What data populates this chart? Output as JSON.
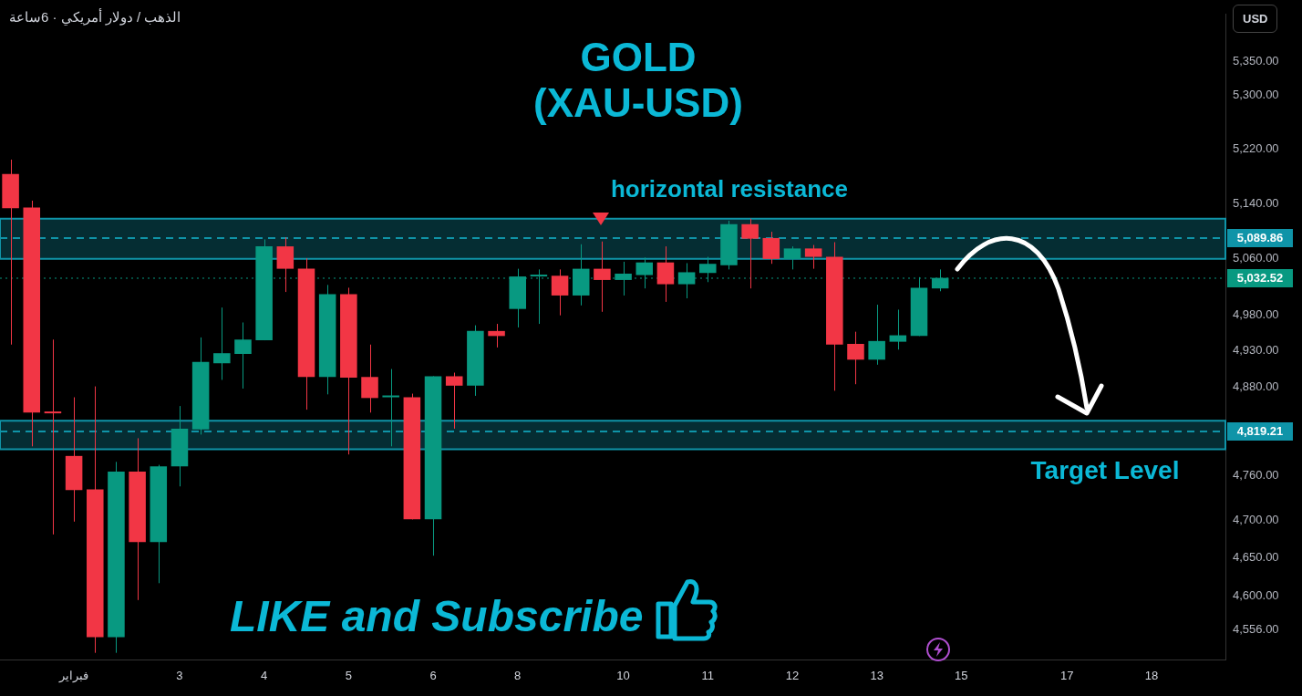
{
  "chart_data": {
    "type": "candlestick",
    "title": "GOLD",
    "subtitle": "(XAU-USD)",
    "annotations": [
      "الذهب / دولار أمريكي · 6ساعة",
      "USD",
      "horizontal resistance",
      "Target Level",
      "LIKE and Subscribe"
    ],
    "categories": [
      null,
      null,
      null,
      "فبراير",
      null,
      null,
      null,
      null,
      "3",
      null,
      null,
      null,
      "4",
      null,
      null,
      null,
      "5",
      null,
      null,
      null,
      "6",
      null,
      null,
      null,
      "8",
      null,
      null,
      null,
      null,
      "10",
      null,
      null,
      null,
      "11",
      null,
      null,
      null,
      "12",
      null,
      null,
      null,
      "13",
      null,
      null,
      null,
      "15",
      null,
      null,
      null,
      null,
      "17",
      null,
      null,
      null,
      "18",
      null,
      null,
      null
    ],
    "ohlc": [
      [
        5183,
        5204,
        4939,
        5133
      ],
      [
        5134,
        5144,
        4799,
        4845
      ],
      [
        4845,
        4946,
        4681,
        4844
      ],
      [
        4786,
        4866,
        4698,
        4740
      ],
      [
        4741,
        4881,
        4527,
        4547
      ],
      [
        4547,
        4778,
        4527,
        4765
      ],
      [
        4765,
        4810,
        4595,
        4671
      ],
      [
        4671,
        4774,
        4617,
        4772
      ],
      [
        4772,
        4854,
        4745,
        4823
      ],
      [
        4822,
        4949,
        4815,
        4915
      ],
      [
        4913,
        4991,
        4890,
        4927
      ],
      [
        4926,
        4970,
        4878,
        4946
      ],
      [
        4945,
        5088,
        4945,
        5078
      ],
      [
        5078,
        5091,
        5013,
        5046
      ],
      [
        5046,
        5061,
        4849,
        4894
      ],
      [
        4894,
        5023,
        4870,
        5010
      ],
      [
        5010,
        5019,
        4788,
        4893
      ],
      [
        4894,
        4939,
        4845,
        4865
      ],
      [
        4866,
        4905,
        4799,
        4867
      ],
      [
        4866,
        4871,
        4701,
        4701
      ],
      [
        4701,
        4895,
        4653,
        4895
      ],
      [
        4895,
        4900,
        4823,
        4882
      ],
      [
        4882,
        4966,
        4868,
        4958
      ],
      [
        4958,
        4968,
        4935,
        4951
      ],
      [
        4989,
        5046,
        4963,
        5035
      ],
      [
        5035,
        5045,
        4968,
        5036
      ],
      [
        5036,
        5045,
        4980,
        5008
      ],
      [
        5008,
        5081,
        4994,
        5046
      ],
      [
        5046,
        5085,
        4985,
        5030
      ],
      [
        5030,
        5056,
        5008,
        5039
      ],
      [
        5037,
        5062,
        5018,
        5055
      ],
      [
        5055,
        5078,
        4999,
        5024
      ],
      [
        5024,
        5054,
        5004,
        5041
      ],
      [
        5040,
        5063,
        5027,
        5053
      ],
      [
        5051,
        5115,
        5045,
        5110
      ],
      [
        5110,
        5118,
        5018,
        5089
      ],
      [
        5090,
        5099,
        5053,
        5060
      ],
      [
        5060,
        5078,
        5045,
        5075
      ],
      [
        5075,
        5080,
        5046,
        5063
      ],
      [
        5063,
        5084,
        4875,
        4939
      ],
      [
        4940,
        4957,
        4884,
        4918
      ],
      [
        4918,
        4995,
        4911,
        4944
      ],
      [
        4943,
        4988,
        4932,
        4952
      ],
      [
        4951,
        5034,
        4951,
        5019
      ],
      [
        5018,
        5045,
        5014,
        5033
      ],
      null,
      null,
      null,
      null,
      null,
      null,
      null,
      null,
      null,
      null,
      null,
      null,
      null
    ],
    "colors": [
      "#f23645",
      "#f23645",
      "#f23645",
      "#f23645",
      "#f23645",
      "#089981",
      "#f23645",
      "#089981",
      "#089981",
      "#089981",
      "#089981",
      "#089981",
      "#089981",
      "#f23645",
      "#f23645",
      "#089981",
      "#f23645",
      "#f23645",
      "#089981",
      "#f23645",
      "#089981",
      "#f23645",
      "#089981",
      "#f23645",
      "#089981",
      "#089981",
      "#f23645",
      "#089981",
      "#f23645",
      "#089981",
      "#089981",
      "#f23645",
      "#089981",
      "#089981",
      "#089981",
      "#f23645",
      "#f23645",
      "#089981",
      "#f23645",
      "#f23645",
      "#f23645",
      "#089981",
      "#089981",
      "#089981",
      "#089981",
      null,
      null,
      null,
      null,
      null,
      null,
      null,
      null,
      null,
      null,
      null,
      null,
      null
    ],
    "log": true,
    "ylim": [
      4518,
      5422
    ],
    "yticks": [
      {
        "value": 4556,
        "label": "4,556.00"
      },
      {
        "value": 4600,
        "label": "4,600.00"
      },
      {
        "value": 4650,
        "label": "4,650.00"
      },
      {
        "value": 4700,
        "label": "4,700.00"
      },
      {
        "value": 4760,
        "label": "4,760.00"
      },
      {
        "value": 4880,
        "label": "4,880.00"
      },
      {
        "value": 4930,
        "label": "4,930.00"
      },
      {
        "value": 4980,
        "label": "4,980.00"
      },
      {
        "value": 5060,
        "label": "5,060.00"
      },
      {
        "value": 5140,
        "label": "5,140.00"
      },
      {
        "value": 5220,
        "label": "5,220.00"
      },
      {
        "value": 5300,
        "label": "5,300.00"
      },
      {
        "value": 5350,
        "label": "5,350.00"
      }
    ],
    "bands": [
      {
        "axis": "y",
        "from": 5060,
        "to": 5118,
        "color": "#0f94a8"
      },
      {
        "axis": "y",
        "from": 4795,
        "to": 4834,
        "color": "#0f94a8"
      }
    ],
    "ref_lines": [
      {
        "axis": "y",
        "value": 5089.86,
        "label": "5,089.86",
        "color": "#0f94a8",
        "line_style": "dashed"
      },
      {
        "axis": "y",
        "value": 4819.21,
        "label": "4,819.21",
        "color": "#0f94a8",
        "line_style": "dashed"
      },
      {
        "axis": "y",
        "value": 5032.52,
        "label": "5,032.52",
        "color": "#089981",
        "line_style": "dotted"
      }
    ],
    "legend": false
  }
}
